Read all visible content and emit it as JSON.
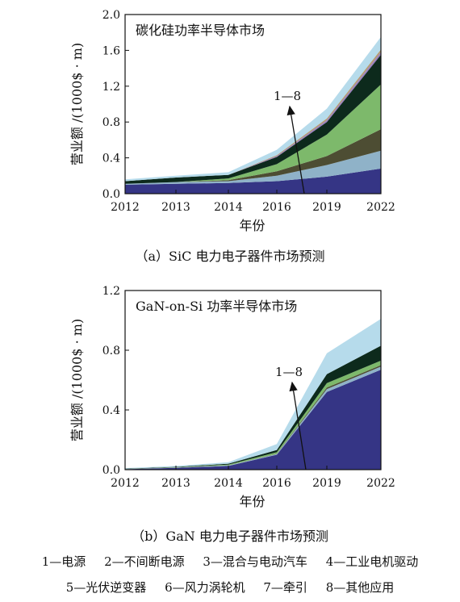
{
  "chart_data": [
    {
      "type": "area",
      "title": "碳化硅功率半导体市场",
      "caption": "（a）SiC 电力电子器件市场预测",
      "xlabel": "年份",
      "ylabel": "营业额 /(1000$ · m)",
      "x": [
        "2012",
        "2013",
        "2014",
        "2016",
        "2019",
        "2022"
      ],
      "ylim": [
        0,
        2.0
      ],
      "yticks": [
        "0.0",
        "0.4",
        "0.8",
        "1.2",
        "1.6",
        "2.0"
      ],
      "annotation": "1—8",
      "stacked": true,
      "series": [
        {
          "name": "1—电源",
          "color": "#353585",
          "values": [
            0.1,
            0.11,
            0.12,
            0.14,
            0.19,
            0.28
          ]
        },
        {
          "name": "2—不间断电源",
          "color": "#8fb2c8",
          "values": [
            0.01,
            0.02,
            0.02,
            0.06,
            0.13,
            0.2
          ]
        },
        {
          "name": "3—混合与电动汽车",
          "color": "#4d4d33",
          "values": [
            0.0,
            0.0,
            0.01,
            0.05,
            0.1,
            0.24
          ]
        },
        {
          "name": "4—工业电机驱动",
          "color": "#7db96b",
          "values": [
            0.0,
            0.0,
            0.02,
            0.08,
            0.24,
            0.5
          ]
        },
        {
          "name": "5—光伏逆变器",
          "color": "#0d2a1c",
          "values": [
            0.03,
            0.05,
            0.04,
            0.08,
            0.14,
            0.33
          ]
        },
        {
          "name": "6—风力涡轮机",
          "color": "#9a7fc0",
          "values": [
            0.0,
            0.0,
            0.0,
            0.01,
            0.02,
            0.03
          ]
        },
        {
          "name": "7—牵引",
          "color": "#b39a72",
          "values": [
            0.0,
            0.0,
            0.0,
            0.01,
            0.02,
            0.03
          ]
        },
        {
          "name": "8—其他应用",
          "color": "#b6dbeb",
          "values": [
            0.02,
            0.02,
            0.03,
            0.06,
            0.11,
            0.14
          ]
        }
      ]
    },
    {
      "type": "area",
      "title": "GaN-on-Si 功率半导体市场",
      "caption": "（b）GaN 电力电子器件市场预测",
      "xlabel": "年份",
      "ylabel": "营业额 /(1000$ · m)",
      "x": [
        "2012",
        "2013",
        "2014",
        "2016",
        "2019",
        "2022"
      ],
      "ylim": [
        0,
        1.2
      ],
      "yticks": [
        "0.0",
        "0.4",
        "0.8",
        "1.2"
      ],
      "annotation": "1—8",
      "stacked": true,
      "series": [
        {
          "name": "1—电源",
          "color": "#353585",
          "values": [
            0.003,
            0.012,
            0.025,
            0.1,
            0.52,
            0.67
          ]
        },
        {
          "name": "2—不间断电源",
          "color": "#8fb2c8",
          "values": [
            0.001,
            0.002,
            0.003,
            0.005,
            0.02,
            0.02
          ]
        },
        {
          "name": "3—混合与电动汽车",
          "color": "#4d4d33",
          "values": [
            0.0,
            0.0,
            0.001,
            0.002,
            0.01,
            0.01
          ]
        },
        {
          "name": "4—工业电机驱动",
          "color": "#7db96b",
          "values": [
            0.001,
            0.002,
            0.005,
            0.01,
            0.03,
            0.03
          ]
        },
        {
          "name": "5—光伏逆变器",
          "color": "#0d2a1c",
          "values": [
            0.002,
            0.003,
            0.006,
            0.015,
            0.06,
            0.1
          ]
        },
        {
          "name": "6—风力涡轮机",
          "color": "#9a7fc0",
          "values": [
            0.0,
            0.0,
            0.0,
            0.0,
            0.0,
            0.0
          ]
        },
        {
          "name": "7—牵引",
          "color": "#b39a72",
          "values": [
            0.0,
            0.0,
            0.0,
            0.0,
            0.0,
            0.0
          ]
        },
        {
          "name": "8—其他应用",
          "color": "#b6dbeb",
          "values": [
            0.003,
            0.006,
            0.01,
            0.04,
            0.14,
            0.18
          ]
        }
      ]
    }
  ],
  "legend": {
    "row1": [
      "1—电源",
      "2—不间断电源",
      "3—混合与电动汽车",
      "4—工业电机驱动"
    ],
    "row2": [
      "5—光伏逆变器",
      "6—风力涡轮机",
      "7—牵引",
      "8—其他应用"
    ]
  }
}
